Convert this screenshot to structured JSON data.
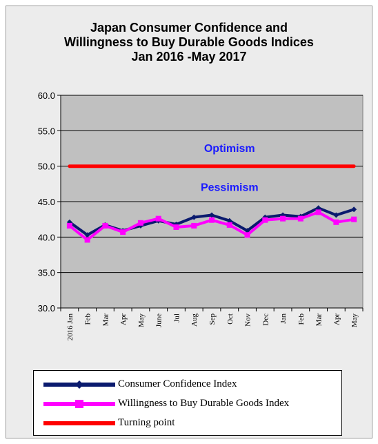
{
  "colors": {
    "background": "#ececec",
    "plot_area": "#c0c0c0",
    "consumer_confidence": "#0a1a6e",
    "willingness": "#ff00ff",
    "turning_point": "#ff0000",
    "zone_text": "#1a1aff"
  },
  "chart_data": {
    "type": "line",
    "title": "Japan Consumer Confidence and Willingness to Buy Durable Goods Indices Jan 2016 -May 2017",
    "title_lines": [
      "Japan Consumer Confidence and",
      "Willingness to Buy Durable Goods Indices",
      "Jan 2016 -May 2017"
    ],
    "categories": [
      "2016 Jan",
      "Feb",
      "Mar",
      "Apr",
      "May",
      "June",
      "Jul",
      "Aug",
      "Sep",
      "Oct",
      "Nov",
      "Dec",
      "Jan",
      "Feb",
      "Mar",
      "Apr",
      "May"
    ],
    "ylim": [
      30,
      60
    ],
    "yticks": [
      "30.0",
      "35.0",
      "40.0",
      "45.0",
      "50.0",
      "55.0",
      "60.0"
    ],
    "grid": true,
    "series": [
      {
        "name": "Consumer Confidence Index",
        "color": "#0a1a6e",
        "marker": "diamond",
        "values": [
          42.1,
          40.3,
          41.7,
          40.9,
          41.6,
          42.3,
          41.8,
          42.8,
          43.1,
          42.3,
          40.9,
          42.8,
          43.1,
          42.9,
          44.1,
          43.1,
          43.9
        ]
      },
      {
        "name": "Willingness to Buy Durable Goods Index",
        "color": "#ff00ff",
        "marker": "square",
        "values": [
          41.6,
          39.6,
          41.6,
          40.7,
          42.0,
          42.6,
          41.4,
          41.6,
          42.4,
          41.7,
          40.3,
          42.4,
          42.6,
          42.6,
          43.5,
          42.1,
          42.5
        ]
      },
      {
        "name": "Turning point",
        "color": "#ff0000",
        "marker": "none",
        "values": [
          50,
          50,
          50,
          50,
          50,
          50,
          50,
          50,
          50,
          50,
          50,
          50,
          50,
          50,
          50,
          50,
          50
        ]
      }
    ],
    "annotations": [
      {
        "text": "Optimism",
        "y": 52.6,
        "x_category": "Oct"
      },
      {
        "text": "Pessimism",
        "y": 47.1,
        "x_category": "Oct"
      }
    ],
    "legend": "bottom"
  }
}
